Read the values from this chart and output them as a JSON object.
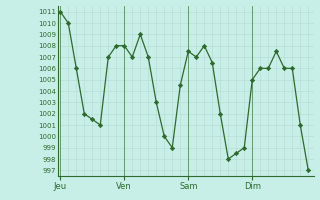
{
  "title": "",
  "background_color": "#c8eee8",
  "line_color": "#2d6a2d",
  "marker_color": "#2d6a2d",
  "grid_color": "#b8ddd6",
  "axis_label_color": "#2d6a2d",
  "tick_color": "#2d6a2d",
  "ylim": [
    996.5,
    1011.5
  ],
  "yticks": [
    997,
    998,
    999,
    1000,
    1001,
    1002,
    1003,
    1004,
    1005,
    1006,
    1007,
    1008,
    1009,
    1010,
    1011
  ],
  "day_labels": [
    "Jeu",
    "Ven",
    "Sam",
    "Dim"
  ],
  "day_positions": [
    0,
    24,
    48,
    72
  ],
  "x_values": [
    0,
    3,
    6,
    9,
    12,
    15,
    18,
    21,
    24,
    27,
    30,
    33,
    36,
    39,
    42,
    45,
    48,
    51,
    54,
    57,
    60,
    63,
    66,
    69,
    72,
    75,
    78,
    81,
    84,
    87,
    90,
    93
  ],
  "y_values": [
    1011,
    1010,
    1006,
    1002,
    1001.5,
    1001,
    1007,
    1008,
    1008,
    1007,
    1009,
    1007,
    1003,
    1000,
    999,
    1004.5,
    1007.5,
    1007,
    1008,
    1006.5,
    1002,
    998,
    998.5,
    999,
    1005,
    1006,
    1006,
    1007.5,
    1006,
    1006,
    1001,
    997
  ],
  "xlim": [
    -1,
    95
  ]
}
